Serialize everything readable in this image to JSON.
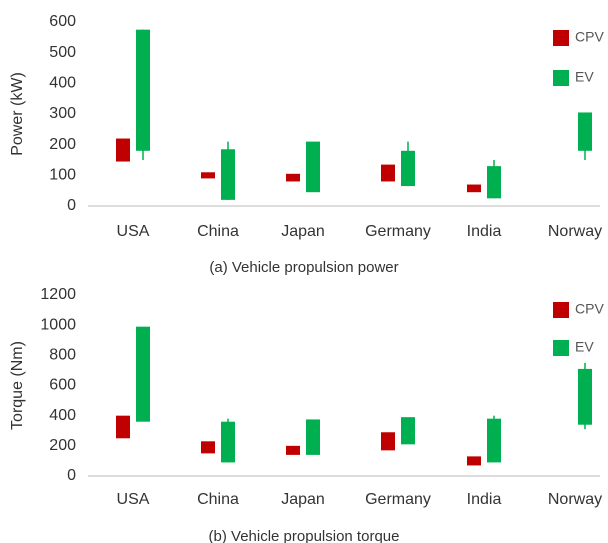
{
  "chart_data": [
    {
      "type": "bar",
      "title": "(a) Vehicle propulsion power",
      "y_label": "Power (kW)",
      "categories": [
        "USA",
        "China",
        "Japan",
        "Germany",
        "India",
        "Norway"
      ],
      "ylim": [
        0,
        600
      ],
      "yticks": [
        0,
        100,
        200,
        300,
        400,
        500,
        600
      ],
      "series": [
        {
          "name": "CPV",
          "color": "#c00000",
          "values": [
            [
              145,
              220
            ],
            [
              90,
              110
            ],
            [
              80,
              105
            ],
            [
              80,
              135
            ],
            [
              45,
              70
            ],
            null
          ],
          "extent": [
            null,
            null,
            null,
            null,
            null,
            null
          ]
        },
        {
          "name": "EV",
          "color": "#00b050",
          "values": [
            [
              180,
              575
            ],
            [
              20,
              185
            ],
            [
              45,
              210
            ],
            [
              65,
              180
            ],
            [
              25,
              130
            ],
            [
              180,
              305
            ]
          ],
          "extent": [
            [
              150,
              575
            ],
            [
              20,
              210
            ],
            null,
            [
              65,
              210
            ],
            [
              25,
              150
            ],
            [
              150,
              305
            ]
          ]
        }
      ]
    },
    {
      "type": "bar",
      "title": "(b) Vehicle propulsion torque",
      "y_label": "Torque (Nm)",
      "categories": [
        "USA",
        "China",
        "Japan",
        "Germany",
        "India",
        "Norway"
      ],
      "ylim": [
        0,
        1200
      ],
      "yticks": [
        0,
        200,
        400,
        600,
        800,
        1000,
        1200
      ],
      "series": [
        {
          "name": "CPV",
          "color": "#c00000",
          "values": [
            [
              250,
              400
            ],
            [
              150,
              230
            ],
            [
              140,
              200
            ],
            [
              170,
              290
            ],
            [
              70,
              130
            ],
            null
          ],
          "extent": [
            null,
            null,
            null,
            null,
            null,
            null
          ]
        },
        {
          "name": "EV",
          "color": "#00b050",
          "values": [
            [
              360,
              990
            ],
            [
              90,
              360
            ],
            [
              140,
              375
            ],
            [
              210,
              390
            ],
            [
              90,
              380
            ],
            [
              340,
              710
            ]
          ],
          "extent": [
            null,
            [
              90,
              380
            ],
            null,
            null,
            [
              90,
              400
            ],
            [
              310,
              750
            ]
          ]
        }
      ]
    }
  ]
}
